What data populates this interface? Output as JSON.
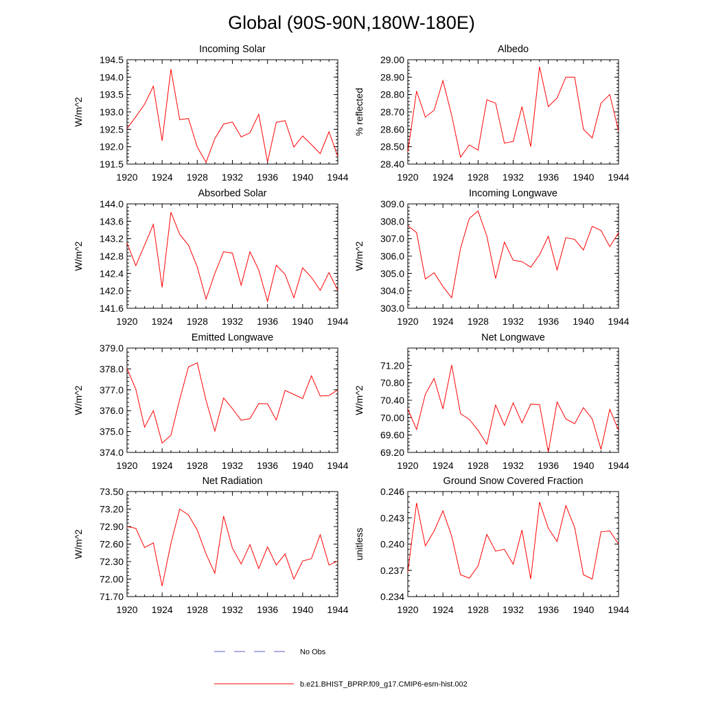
{
  "figure": {
    "title": "Global (90S-90N,180W-180E)"
  },
  "legend": {
    "entries": [
      {
        "label": "No Obs",
        "color": "#5a5ac8",
        "style": "dashed"
      },
      {
        "label": "b.e21.BHIST_BPRP.f09_g17.CMIP6-esm-hist.002",
        "color": "#ff0000",
        "style": "solid"
      }
    ]
  },
  "chart_data": [
    {
      "type": "line",
      "title": "Incoming Solar",
      "ylabel": "W/m^2",
      "xlim": [
        1920,
        1944
      ],
      "ylim": [
        191.5,
        194.5
      ],
      "xticks": [
        "1920",
        "1924",
        "1928",
        "1932",
        "1936",
        "1940",
        "1944"
      ],
      "yticks": [
        "191.5",
        "192.0",
        "192.5",
        "193.0",
        "193.5",
        "194.0",
        "194.5"
      ],
      "x": [
        1920,
        1921,
        1922,
        1923,
        1924,
        1925,
        1926,
        1927,
        1928,
        1929,
        1930,
        1931,
        1932,
        1933,
        1934,
        1935,
        1936,
        1937,
        1938,
        1939,
        1940,
        1941,
        1942,
        1943,
        1944
      ],
      "series": [
        {
          "name": "b.e21.BHIST_BPRP.f09_g17.CMIP6-esm-hist.002",
          "color": "#ff0000",
          "values": [
            192.52,
            192.86,
            193.22,
            193.74,
            192.17,
            194.23,
            192.78,
            192.81,
            191.99,
            191.55,
            192.23,
            192.65,
            192.71,
            192.28,
            192.4,
            192.93,
            191.56,
            192.7,
            192.75,
            191.99,
            192.31,
            192.06,
            191.8,
            192.43,
            191.72
          ]
        }
      ]
    },
    {
      "type": "line",
      "title": "Albedo",
      "ylabel": "% reflected",
      "xlim": [
        1920,
        1944
      ],
      "ylim": [
        28.4,
        29.0
      ],
      "xticks": [
        "1920",
        "1924",
        "1928",
        "1932",
        "1936",
        "1940",
        "1944"
      ],
      "yticks": [
        "28.40",
        "28.50",
        "28.60",
        "28.70",
        "28.80",
        "28.90",
        "29.00"
      ],
      "x": [
        1920,
        1921,
        1922,
        1923,
        1924,
        1925,
        1926,
        1927,
        1928,
        1929,
        1930,
        1931,
        1932,
        1933,
        1934,
        1935,
        1936,
        1937,
        1938,
        1939,
        1940,
        1941,
        1942,
        1943,
        1944
      ],
      "series": [
        {
          "name": "b.e21.BHIST_BPRP.f09_g17.CMIP6-esm-hist.002",
          "color": "#ff0000",
          "values": [
            28.47,
            28.82,
            28.67,
            28.71,
            28.88,
            28.68,
            28.44,
            28.51,
            28.48,
            28.77,
            28.75,
            28.52,
            28.53,
            28.73,
            28.5,
            28.96,
            28.73,
            28.78,
            28.9,
            28.9,
            28.6,
            28.55,
            28.75,
            28.8,
            28.59
          ]
        }
      ]
    },
    {
      "type": "line",
      "title": "Absorbed Solar",
      "ylabel": "W/m^2",
      "xlim": [
        1920,
        1944
      ],
      "ylim": [
        141.6,
        144.0
      ],
      "xticks": [
        "1920",
        "1924",
        "1928",
        "1932",
        "1936",
        "1940",
        "1944"
      ],
      "yticks": [
        "141.6",
        "142.0",
        "142.4",
        "142.8",
        "143.2",
        "143.6",
        "144.0"
      ],
      "x": [
        1920,
        1921,
        1922,
        1923,
        1924,
        1925,
        1926,
        1927,
        1928,
        1929,
        1930,
        1931,
        1932,
        1933,
        1934,
        1935,
        1936,
        1937,
        1938,
        1939,
        1940,
        1941,
        1942,
        1943,
        1944
      ],
      "series": [
        {
          "name": "b.e21.BHIST_BPRP.f09_g17.CMIP6-esm-hist.002",
          "color": "#ff0000",
          "values": [
            143.1,
            142.58,
            143.05,
            143.53,
            142.08,
            143.81,
            143.3,
            143.05,
            142.55,
            141.81,
            142.4,
            142.9,
            142.87,
            142.13,
            142.9,
            142.48,
            141.76,
            142.59,
            142.38,
            141.84,
            142.53,
            142.31,
            142.01,
            142.42,
            142.01
          ]
        }
      ]
    },
    {
      "type": "line",
      "title": "Incoming Longwave",
      "ylabel": "W/m^2",
      "xlim": [
        1920,
        1944
      ],
      "ylim": [
        303.0,
        309.0
      ],
      "xticks": [
        "1920",
        "1924",
        "1928",
        "1932",
        "1936",
        "1940",
        "1944"
      ],
      "yticks": [
        "303.0",
        "304.0",
        "305.0",
        "306.0",
        "307.0",
        "308.0",
        "309.0"
      ],
      "x": [
        1920,
        1921,
        1922,
        1923,
        1924,
        1925,
        1926,
        1927,
        1928,
        1929,
        1930,
        1931,
        1932,
        1933,
        1934,
        1935,
        1936,
        1937,
        1938,
        1939,
        1940,
        1941,
        1942,
        1943,
        1944
      ],
      "series": [
        {
          "name": "b.e21.BHIST_BPRP.f09_g17.CMIP6-esm-hist.002",
          "color": "#ff0000",
          "values": [
            307.75,
            307.35,
            304.68,
            305.04,
            304.25,
            303.6,
            306.44,
            308.16,
            308.59,
            307.15,
            304.71,
            306.8,
            305.76,
            305.68,
            305.36,
            306.07,
            307.14,
            305.2,
            307.06,
            306.96,
            306.35,
            307.71,
            307.47,
            306.54,
            307.34
          ]
        }
      ]
    },
    {
      "type": "line",
      "title": "Emitted Longwave",
      "ylabel": "W/m^2",
      "xlim": [
        1920,
        1944
      ],
      "ylim": [
        374.0,
        379.0
      ],
      "xticks": [
        "1920",
        "1924",
        "1928",
        "1932",
        "1936",
        "1940",
        "1944"
      ],
      "yticks": [
        "374.0",
        "375.0",
        "376.0",
        "377.0",
        "378.0",
        "379.0"
      ],
      "x": [
        1920,
        1921,
        1922,
        1923,
        1924,
        1925,
        1926,
        1927,
        1928,
        1929,
        1930,
        1931,
        1932,
        1933,
        1934,
        1935,
        1936,
        1937,
        1938,
        1939,
        1940,
        1941,
        1942,
        1943,
        1944
      ],
      "series": [
        {
          "name": "b.e21.BHIST_BPRP.f09_g17.CMIP6-esm-hist.002",
          "color": "#ff0000",
          "values": [
            378.02,
            377.03,
            375.21,
            376.0,
            374.45,
            374.82,
            376.54,
            378.1,
            378.29,
            376.49,
            375.02,
            376.61,
            376.1,
            375.54,
            375.62,
            376.34,
            376.33,
            375.55,
            376.97,
            376.78,
            376.58,
            377.67,
            376.7,
            376.72,
            377.0
          ]
        }
      ]
    },
    {
      "type": "line",
      "title": "Net Longwave",
      "ylabel": "W/m^2",
      "xlim": [
        1920,
        1944
      ],
      "ylim": [
        69.2,
        71.6
      ],
      "xticks": [
        "1920",
        "1924",
        "1928",
        "1932",
        "1936",
        "1940",
        "1944"
      ],
      "yticks": [
        "69.20",
        "69.60",
        "70.00",
        "70.40",
        "70.80",
        "71.20"
      ],
      "x": [
        1920,
        1921,
        1922,
        1923,
        1924,
        1925,
        1926,
        1927,
        1928,
        1929,
        1930,
        1931,
        1932,
        1933,
        1934,
        1935,
        1936,
        1937,
        1938,
        1939,
        1940,
        1941,
        1942,
        1943,
        1944
      ],
      "series": [
        {
          "name": "b.e21.BHIST_BPRP.f09_g17.CMIP6-esm-hist.002",
          "color": "#ff0000",
          "values": [
            70.2,
            69.73,
            70.54,
            70.9,
            70.2,
            71.21,
            70.09,
            69.96,
            69.71,
            69.39,
            70.29,
            69.82,
            70.34,
            69.88,
            70.31,
            70.3,
            69.21,
            70.36,
            69.97,
            69.86,
            70.23,
            69.97,
            69.27,
            70.19,
            69.71
          ]
        }
      ]
    },
    {
      "type": "line",
      "title": "Net Radiation",
      "ylabel": "W/m^2",
      "xlim": [
        1920,
        1944
      ],
      "ylim": [
        71.7,
        73.5
      ],
      "xticks": [
        "1920",
        "1924",
        "1928",
        "1932",
        "1936",
        "1940",
        "1944"
      ],
      "yticks": [
        "71.70",
        "72.00",
        "72.30",
        "72.60",
        "72.90",
        "73.20",
        "73.50"
      ],
      "x": [
        1920,
        1921,
        1922,
        1923,
        1924,
        1925,
        1926,
        1927,
        1928,
        1929,
        1930,
        1931,
        1932,
        1933,
        1934,
        1935,
        1936,
        1937,
        1938,
        1939,
        1940,
        1941,
        1942,
        1943,
        1944
      ],
      "series": [
        {
          "name": "b.e21.BHIST_BPRP.f09_g17.CMIP6-esm-hist.002",
          "color": "#ff0000",
          "values": [
            72.9,
            72.87,
            72.54,
            72.62,
            71.88,
            72.61,
            73.2,
            73.1,
            72.84,
            72.43,
            72.1,
            73.08,
            72.53,
            72.26,
            72.59,
            72.18,
            72.55,
            72.24,
            72.43,
            72.0,
            72.31,
            72.35,
            72.76,
            72.24,
            72.31
          ]
        }
      ]
    },
    {
      "type": "line",
      "title": "Ground Snow Covered Fraction",
      "ylabel": "unitless",
      "xlim": [
        1920,
        1944
      ],
      "ylim": [
        0.234,
        0.246
      ],
      "xticks": [
        "1920",
        "1924",
        "1928",
        "1932",
        "1936",
        "1940",
        "1944"
      ],
      "yticks": [
        "0.234",
        "0.237",
        "0.240",
        "0.243",
        "0.246"
      ],
      "x": [
        1920,
        1921,
        1922,
        1923,
        1924,
        1925,
        1926,
        1927,
        1928,
        1929,
        1930,
        1931,
        1932,
        1933,
        1934,
        1935,
        1936,
        1937,
        1938,
        1939,
        1940,
        1941,
        1942,
        1943,
        1944
      ],
      "series": [
        {
          "name": "b.e21.BHIST_BPRP.f09_g17.CMIP6-esm-hist.002",
          "color": "#ff0000",
          "values": [
            0.2368,
            0.2447,
            0.2398,
            0.2415,
            0.2438,
            0.2409,
            0.2365,
            0.2361,
            0.2375,
            0.2411,
            0.2392,
            0.2394,
            0.2377,
            0.2416,
            0.236,
            0.2448,
            0.2418,
            0.2403,
            0.2444,
            0.2419,
            0.2365,
            0.236,
            0.2414,
            0.2415,
            0.24
          ]
        }
      ]
    }
  ]
}
